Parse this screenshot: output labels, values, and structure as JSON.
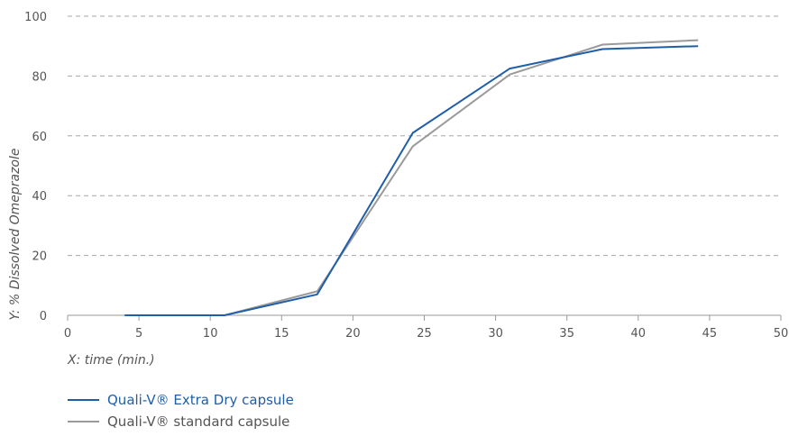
{
  "chart_data": {
    "type": "line",
    "xlabel": "X: time (min.)",
    "ylabel": "Y: % Dissolved Omeprazole",
    "xlim": [
      0,
      50
    ],
    "ylim": [
      0,
      100
    ],
    "xticks": [
      0,
      5,
      10,
      15,
      20,
      25,
      30,
      35,
      40,
      45,
      50
    ],
    "yticks": [
      0,
      20,
      40,
      60,
      80,
      100
    ],
    "grid": "horizontal dashed",
    "legend_position": "bottom-left",
    "series": [
      {
        "name": "Quali-V® Extra Dry capsule",
        "color": "#1f5ea8",
        "x": [
          4,
          11,
          17.5,
          24.2,
          31,
          37.5,
          44.2
        ],
        "y": [
          0,
          0,
          7,
          61,
          82.5,
          89,
          90
        ]
      },
      {
        "name": "Quali-V® standard capsule",
        "color": "#9a9a9a",
        "x": [
          4,
          11,
          17.5,
          24.2,
          31,
          37.5,
          44.2
        ],
        "y": [
          0,
          0,
          8,
          56.5,
          80.5,
          90.5,
          92
        ]
      }
    ]
  }
}
